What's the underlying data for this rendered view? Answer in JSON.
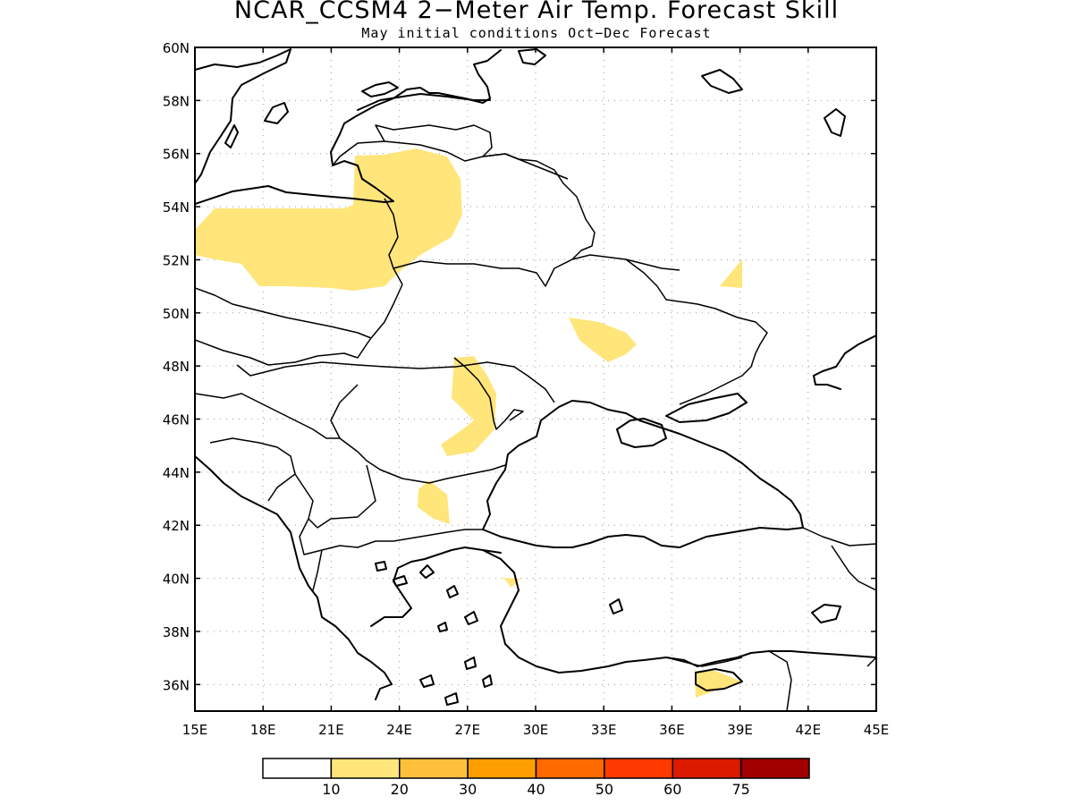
{
  "title": "NCAR_CCSM4 2−Meter Air Temp. Forecast Skill",
  "subtitle": "May initial conditions  Oct−Dec Forecast",
  "lat_ticks": [
    "60N",
    "58N",
    "56N",
    "54N",
    "52N",
    "50N",
    "48N",
    "46N",
    "44N",
    "42N",
    "40N",
    "38N",
    "36N"
  ],
  "lon_ticks": [
    "15E",
    "18E",
    "21E",
    "24E",
    "27E",
    "30E",
    "33E",
    "36E",
    "39E",
    "42E",
    "45E"
  ],
  "map": {
    "lon_range": [
      15,
      45
    ],
    "lat_range": [
      35,
      60
    ],
    "grid": "dotted",
    "skill_color_class_1": "#ffe57a"
  },
  "colorbar": {
    "labels": [
      "10",
      "20",
      "30",
      "40",
      "50",
      "60",
      "75"
    ],
    "colors": [
      "#ffffff",
      "#ffe57a",
      "#ffc13c",
      "#ff9e00",
      "#ff6a00",
      "#ff3a00",
      "#dc1a00",
      "#a00000"
    ]
  }
}
